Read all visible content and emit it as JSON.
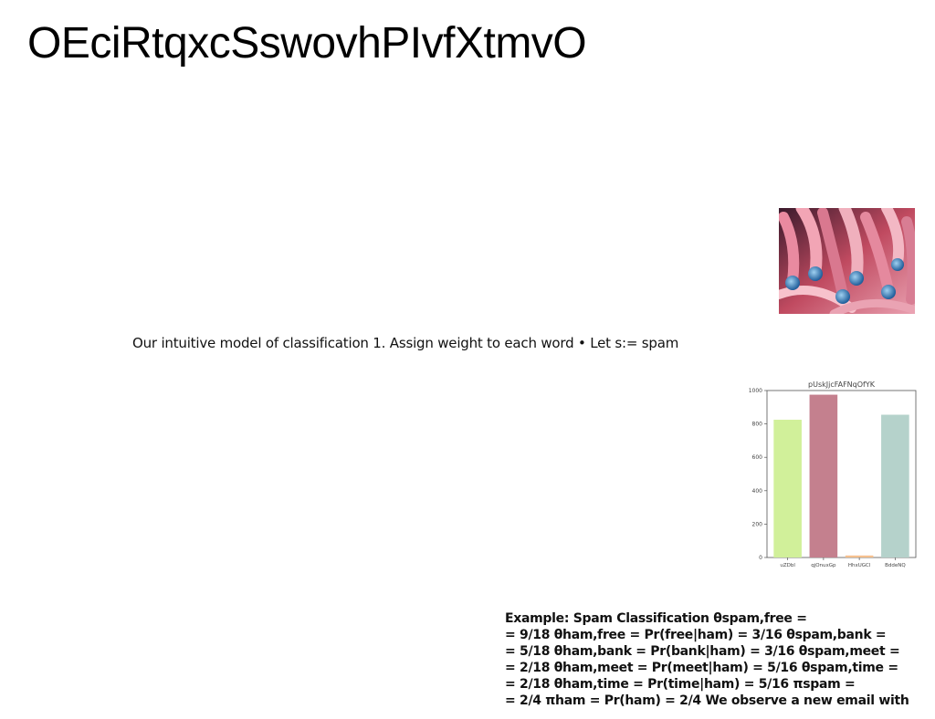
{
  "slide": {
    "title": "OEciRtqxcSswovhPIvfXtmvO",
    "subtitle": "Our intuitive model of classification 1. Assign weight to each word • Let s:= spam"
  },
  "photo": {
    "icon": "coral-tentacles-photo"
  },
  "example": {
    "lines": [
      "Example: Spam Classification θspam,free =",
      "= 9/18 θham,free = Pr(free|ham) = 3/16 θspam,bank =",
      "= 5/18 θham,bank = Pr(bank|ham) = 3/16 θspam,meet =",
      "= 2/18 θham,meet = Pr(meet|ham) = 5/16 θspam,time =",
      "= 2/18 θham,time = Pr(time|ham) = 5/16 πspam =",
      "= 2/4 πham = Pr(ham) = 2/4 We observe a new email with"
    ]
  },
  "chart_data": {
    "type": "bar",
    "title": "pUskJjcFAFNqOfYK",
    "categories": [
      "uZDbl",
      "qjOnuxGp",
      "HhxUGCl",
      "BddeNQ"
    ],
    "values": [
      825,
      975,
      12,
      855
    ],
    "colors": [
      "#d1f09a",
      "#c4808e",
      "#f5c08e",
      "#b5d2cb"
    ],
    "ylim": [
      0,
      1000
    ],
    "yticks": [
      0,
      200,
      400,
      600,
      800,
      1000
    ],
    "xlabel": "",
    "ylabel": ""
  }
}
